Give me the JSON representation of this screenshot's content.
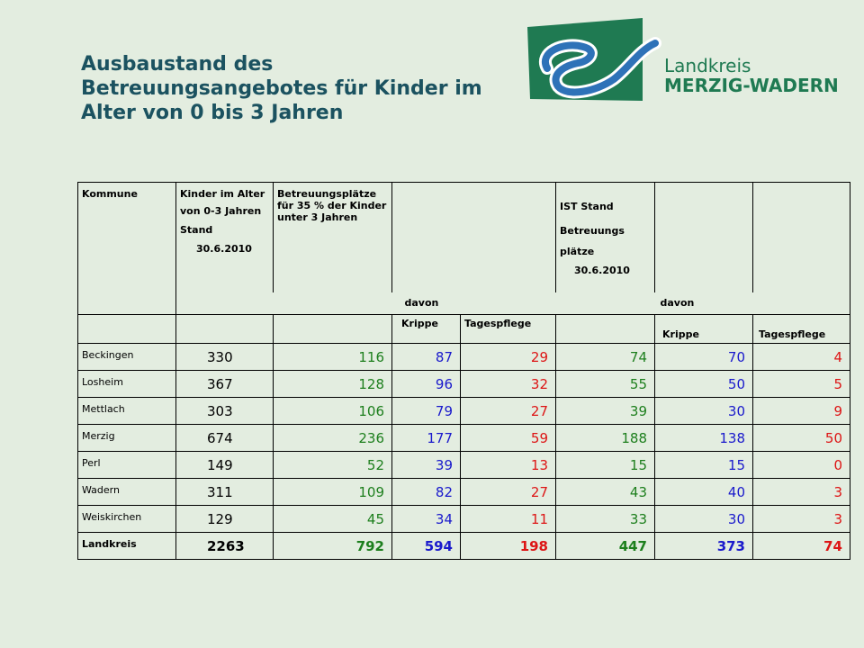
{
  "title": {
    "line1": "Ausbaustand des",
    "line2": "Betreuungsangebotes für Kinder im",
    "line3": "Alter von 0 bis 3 Jahren"
  },
  "logo": {
    "line1": "Landkreis",
    "line2": "MERZIG-WADERN"
  },
  "colors": {
    "background": "#e3ede0",
    "title": "#1b5260",
    "green": "#1d7f1d",
    "blue": "#1a1acc",
    "red": "#dd1515"
  },
  "header": {
    "kommune": "Kommune",
    "kinder_1": "Kinder im Alter",
    "kinder_2": "von 0-3 Jahren",
    "kinder_3": "Stand",
    "kinder_4": "30.6.2010",
    "plaetze": "Betreuungsplätze für 35 % der Kinder unter 3 Jahren",
    "ist_1": "IST Stand",
    "ist_2": "Betreuungs",
    "ist_3": "plätze",
    "ist_4": "30.6.2010",
    "davon_1": "davon",
    "davon_2": "davon",
    "krippe_1": "Krippe",
    "tages_1": "Tagespflege",
    "krippe_2": "Krippe",
    "tages_2": "Tagespflege"
  },
  "rows": [
    {
      "name": "Beckingen",
      "kinder": "330",
      "plaetze": "116",
      "krippe": "87",
      "tages": "29",
      "ist": "74",
      "ist_krippe": "70",
      "ist_tages": "4"
    },
    {
      "name": "Losheim",
      "kinder": "367",
      "plaetze": "128",
      "krippe": "96",
      "tages": "32",
      "ist": "55",
      "ist_krippe": "50",
      "ist_tages": "5"
    },
    {
      "name": "Mettlach",
      "kinder": "303",
      "plaetze": "106",
      "krippe": "79",
      "tages": "27",
      "ist": "39",
      "ist_krippe": "30",
      "ist_tages": "9"
    },
    {
      "name": "Merzig",
      "kinder": "674",
      "plaetze": "236",
      "krippe": "177",
      "tages": "59",
      "ist": "188",
      "ist_krippe": "138",
      "ist_tages": "50"
    },
    {
      "name": "Perl",
      "kinder": "149",
      "plaetze": "52",
      "krippe": "39",
      "tages": "13",
      "ist": "15",
      "ist_krippe": "15",
      "ist_tages": "0"
    },
    {
      "name": "Wadern",
      "kinder": "311",
      "plaetze": "109",
      "krippe": "82",
      "tages": "27",
      "ist": "43",
      "ist_krippe": "40",
      "ist_tages": "3"
    },
    {
      "name": "Weiskirchen",
      "kinder": "129",
      "plaetze": "45",
      "krippe": "34",
      "tages": "11",
      "ist": "33",
      "ist_krippe": "30",
      "ist_tages": "3"
    },
    {
      "name": "Landkreis",
      "kinder": "2263",
      "plaetze": "792",
      "krippe": "594",
      "tages": "198",
      "ist": "447",
      "ist_krippe": "373",
      "ist_tages": "74"
    }
  ]
}
